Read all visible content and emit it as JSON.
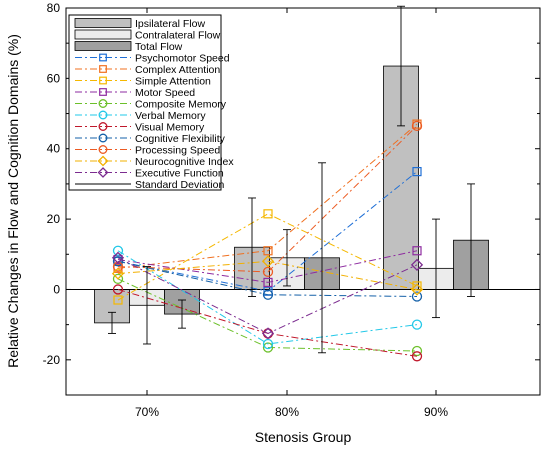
{
  "chart_data": {
    "type": "bar",
    "title": "",
    "xlabel": "Stenosis Group",
    "ylabel": "Relative Changes in Flow and Cognition Domains (%)",
    "categories": [
      "70%",
      "80%",
      "90%"
    ],
    "ylim": [
      -30,
      80
    ],
    "yticks": [
      -20,
      0,
      20,
      40,
      60,
      80
    ],
    "grid": false,
    "legend_position": "top-left",
    "bar_series": [
      {
        "name": "Ipsilateral Flow",
        "color": "#c0c0c0",
        "values": [
          -9.5,
          12,
          63.5
        ],
        "sd": [
          3,
          14,
          17
        ]
      },
      {
        "name": "Contralateral Flow",
        "color": "#ececec",
        "values": [
          -4.5,
          9,
          6
        ],
        "sd": [
          11,
          8,
          14
        ]
      },
      {
        "name": "Total Flow",
        "color": "#a0a0a0",
        "values": [
          -7,
          9,
          14
        ],
        "sd": [
          4,
          27,
          16
        ]
      }
    ],
    "line_series": [
      {
        "name": "Psychomotor Speed",
        "color": "#1f6fd6",
        "marker": "square",
        "dash": "7,3,2,3",
        "values": [
          8,
          -0.5,
          33.5
        ]
      },
      {
        "name": "Complex Attention",
        "color": "#f07020",
        "marker": "square",
        "dash": "7,3,2,3",
        "values": [
          6,
          11,
          47
        ]
      },
      {
        "name": "Simple Attention",
        "color": "#f5b800",
        "marker": "square",
        "dash": "7,3,2,3",
        "values": [
          -3,
          21.5,
          1
        ]
      },
      {
        "name": "Motor Speed",
        "color": "#8e2ba0",
        "marker": "square",
        "dash": "7,3,2,3",
        "values": [
          8.5,
          2,
          11
        ]
      },
      {
        "name": "Composite Memory",
        "color": "#6cc02a",
        "marker": "circle",
        "dash": "7,3,2,3",
        "values": [
          3,
          -16.5,
          -17.5
        ]
      },
      {
        "name": "Verbal Memory",
        "color": "#22c8e8",
        "marker": "circle",
        "dash": "7,3,2,3",
        "values": [
          11,
          -15.5,
          -10
        ]
      },
      {
        "name": "Visual Memory",
        "color": "#c0182c",
        "marker": "circle",
        "dash": "7,3,2,3",
        "values": [
          0,
          -12.5,
          -19
        ]
      },
      {
        "name": "Cognitive Flexibility",
        "color": "#1460a8",
        "marker": "circle",
        "dash": "7,3,2,3",
        "values": [
          8,
          -1.5,
          -2
        ]
      },
      {
        "name": "Processing Speed",
        "color": "#ec5a22",
        "marker": "circle",
        "dash": "7,3,2,3",
        "values": [
          6.5,
          5,
          46.5
        ]
      },
      {
        "name": "Neurocognitive Index",
        "color": "#f2b000",
        "marker": "diamond",
        "dash": "7,3,2,3",
        "values": [
          4.5,
          8,
          0
        ]
      },
      {
        "name": "Executive Function",
        "color": "#7c2c90",
        "marker": "diamond",
        "dash": "7,3,2,3",
        "values": [
          9,
          -12.5,
          7
        ]
      }
    ],
    "legend_extra": "Standard Deviation"
  }
}
